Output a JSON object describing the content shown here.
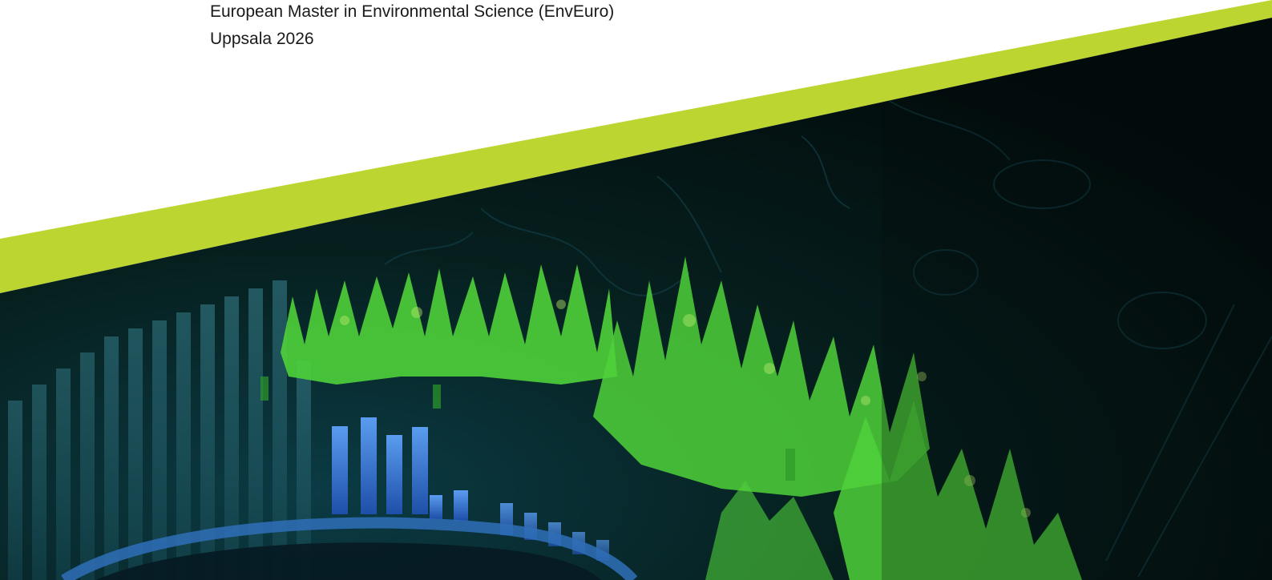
{
  "cover": {
    "programme": "European Master in Environmental Science (EnvEuro)",
    "place_year": "Uppsala 2026"
  },
  "colors": {
    "accent_band": "#bdd530",
    "background": "#ffffff",
    "artwork_dark": "#02100e",
    "forest_green": "#4fd13a",
    "bar_blue": "#3f7fe0",
    "text": "#1a1a1a"
  },
  "artwork": {
    "description_icon": "lidar-forest-scan-image"
  }
}
